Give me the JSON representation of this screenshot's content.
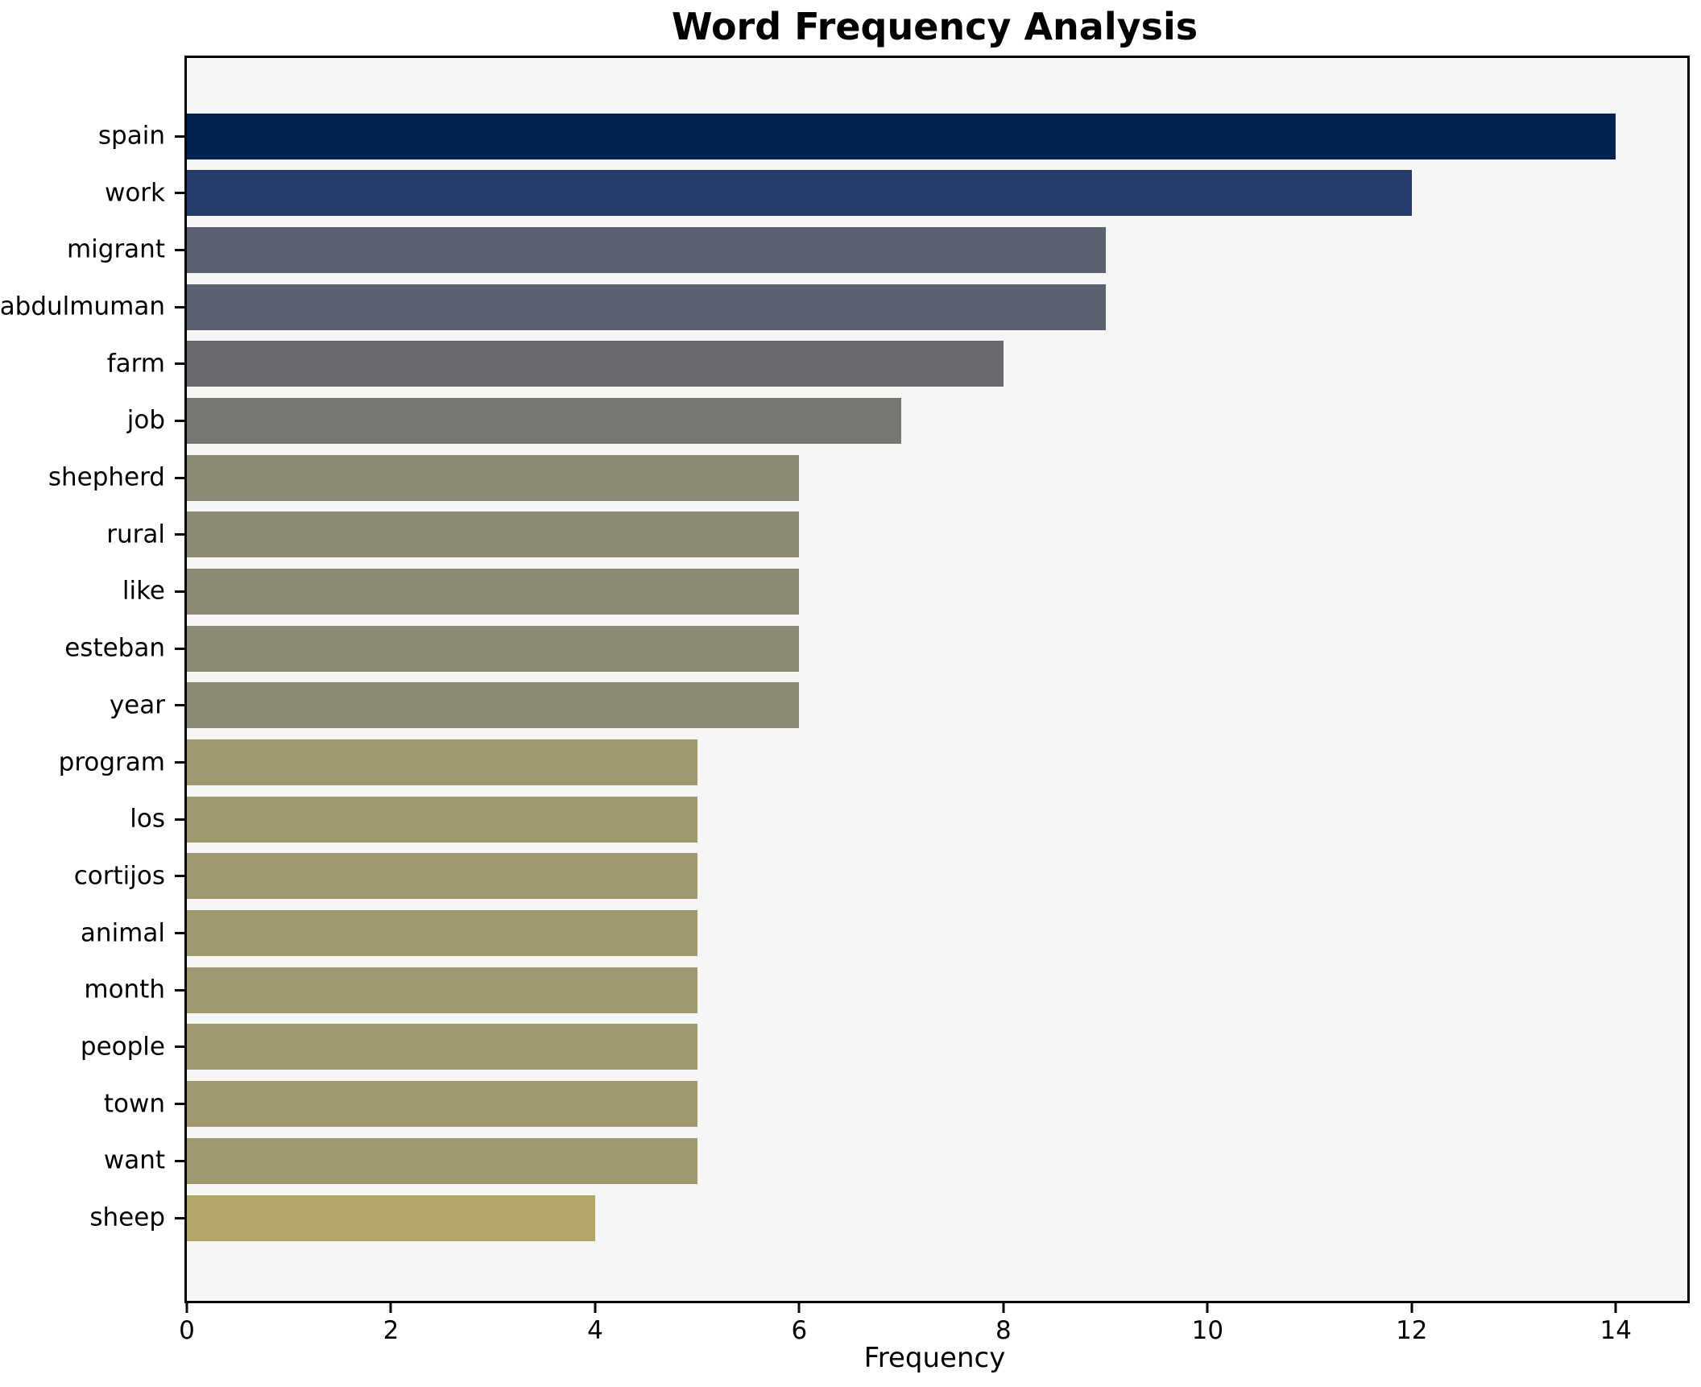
{
  "chart_data": {
    "type": "bar",
    "orientation": "horizontal",
    "title": "Word Frequency Analysis",
    "xlabel": "Frequency",
    "ylabel": "",
    "categories": [
      "spain",
      "work",
      "migrant",
      "abdulmuman",
      "farm",
      "job",
      "shepherd",
      "rural",
      "like",
      "esteban",
      "year",
      "program",
      "los",
      "cortijos",
      "animal",
      "month",
      "people",
      "town",
      "want",
      "sheep"
    ],
    "values": [
      14,
      12,
      9,
      9,
      8,
      7,
      6,
      6,
      6,
      6,
      6,
      5,
      5,
      5,
      5,
      5,
      5,
      5,
      5,
      4
    ],
    "bar_colors": [
      "#01224e",
      "#253c6b",
      "#5b6170",
      "#5b6170",
      "#6a6a6e",
      "#787773",
      "#8d8977",
      "#8d8977",
      "#8d8977",
      "#8d8977",
      "#8d8977",
      "#9f9870",
      "#9f9870",
      "#9f9870",
      "#9f9870",
      "#9f9870",
      "#9f9870",
      "#9f9870",
      "#9f9870",
      "#b1a76b"
    ],
    "xlim": [
      0,
      14.7
    ],
    "xticks": [
      0,
      2,
      4,
      6,
      8,
      10,
      12,
      14
    ],
    "grid": false,
    "legend": null,
    "colors": {
      "plot_background": "#f6f6f4",
      "figure_background": "#ffffff",
      "spine": "#000000",
      "text": "#000000"
    }
  }
}
